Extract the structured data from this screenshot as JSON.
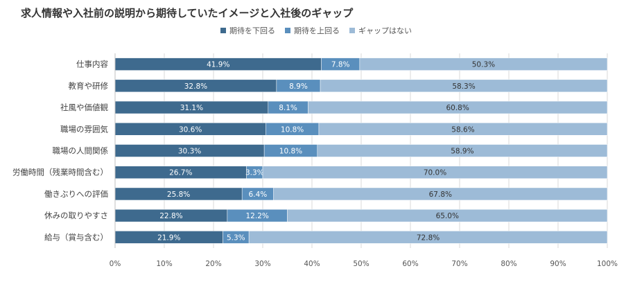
{
  "chart_data": {
    "type": "bar",
    "stacked": true,
    "orientation": "horizontal",
    "title": "求人情報や入社前の説明から期待していたイメージと入社後のギャップ",
    "categories": [
      "仕事内容",
      "教育や研修",
      "社風や価値観",
      "職場の雰囲気",
      "職場の人間関係",
      "労働時間（残業時間含む）",
      "働きぶりへの評価",
      "休みの取りやすさ",
      "給与（賞与含む）"
    ],
    "series": [
      {
        "name": "期待を下回る",
        "color": "#3E6A8E",
        "values": [
          41.9,
          32.8,
          31.1,
          30.6,
          30.3,
          26.7,
          25.8,
          22.8,
          21.9
        ],
        "labels": [
          "41.9%",
          "32.8%",
          "31.1%",
          "30.6%",
          "30.3%",
          "26.7%",
          "25.8%",
          "22.8%",
          "21.9%"
        ]
      },
      {
        "name": "期待を上回る",
        "color": "#5A8FBD",
        "values": [
          7.8,
          8.9,
          8.1,
          10.8,
          10.8,
          3.3,
          6.4,
          12.2,
          5.3
        ],
        "labels": [
          "7.8%",
          "8.9%",
          "8.1%",
          "10.8%",
          "10.8%",
          "3.3%",
          "6.4%",
          "12.2%",
          "5.3%"
        ]
      },
      {
        "name": "ギャップはない",
        "color": "#9DBBD7",
        "values": [
          50.3,
          58.3,
          60.8,
          58.6,
          58.9,
          70.0,
          67.8,
          65.0,
          72.8
        ],
        "labels": [
          "50.3%",
          "58.3%",
          "60.8%",
          "58.6%",
          "58.9%",
          "70.0%",
          "67.8%",
          "65.0%",
          "72.8%"
        ]
      }
    ],
    "xlim": [
      0,
      100
    ],
    "xticks": [
      "0%",
      "10%",
      "20%",
      "30%",
      "40%",
      "50%",
      "60%",
      "70%",
      "80%",
      "90%",
      "100%"
    ],
    "grid": true,
    "legend": "top"
  }
}
